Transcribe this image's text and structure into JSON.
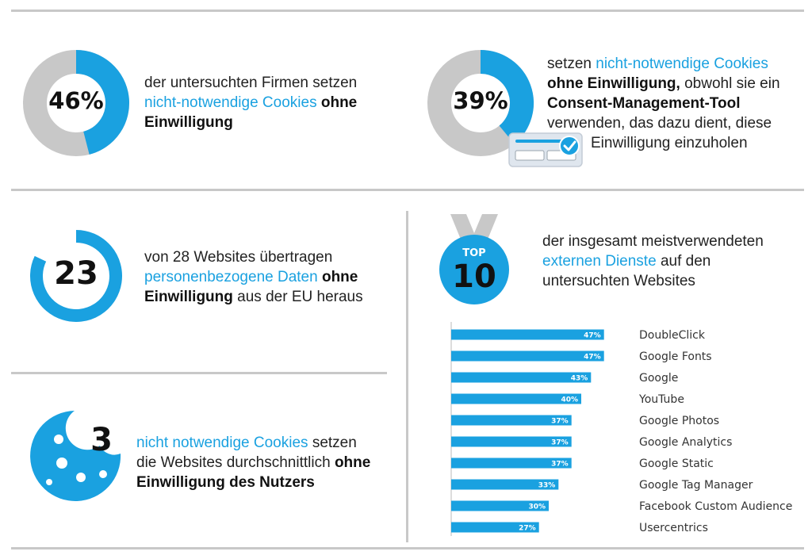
{
  "colors": {
    "accent": "#1aa1e0",
    "gray": "#c8c8c8",
    "dark": "#111111"
  },
  "stat1": {
    "value": "46%",
    "percent": 46,
    "text": {
      "pre": "der untersuchten Firmen setzen",
      "hl": "nicht-notwendige Cookies",
      "b1": "ohne",
      "b2": "Einwilligung"
    }
  },
  "stat2": {
    "value": "39%",
    "percent": 39,
    "icon": "consent-checkbox-icon",
    "text": {
      "pre": "setzen",
      "hl": "nicht-notwendige Cookies",
      "b1": "ohne Einwilligung,",
      "mid": "obwohl sie ein",
      "b2": "Consent-Management-Tool",
      "l4": "verwenden, das dazu dient, diese",
      "l5": "Einwilligung einzuholen"
    }
  },
  "stat3": {
    "value": "23",
    "of": 28,
    "text": {
      "pre": "von 28 Websites übertragen",
      "hl": "personenbezogene Daten",
      "b1": "ohne",
      "b2": "Einwilligung",
      "post": "aus der EU heraus"
    }
  },
  "stat4": {
    "value": "3",
    "icon": "cookie-icon",
    "text": {
      "hl": "nicht notwendige Cookies",
      "mid": "setzen",
      "l2": "die Websites durchschnittlich",
      "b1": "ohne",
      "b2": "Einwilligung des Nutzers"
    }
  },
  "top10": {
    "badge_top": "TOP",
    "badge_num": "10",
    "icon": "medal-icon",
    "text": {
      "l1": "der insgesamt meistverwendeten",
      "hl": "externen Dienste",
      "mid": "auf den",
      "l3": "untersuchten Websites"
    }
  },
  "chart_data": {
    "type": "bar",
    "orientation": "horizontal",
    "categories": [
      "DoubleClick",
      "Google Fonts",
      "Google",
      "YouTube",
      "Google Photos",
      "Google Analytics",
      "Google Static",
      "Google Tag Manager",
      "Facebook Custom Audience",
      "Usercentrics"
    ],
    "values": [
      47,
      47,
      43,
      40,
      37,
      37,
      37,
      33,
      30,
      27
    ],
    "value_labels": [
      "47%",
      "47%",
      "43%",
      "40%",
      "37%",
      "37%",
      "37%",
      "33%",
      "30%",
      "27%"
    ],
    "unit": "%",
    "bar_color": "#1aa1e0",
    "title": "",
    "xlabel": "",
    "ylabel": ""
  }
}
